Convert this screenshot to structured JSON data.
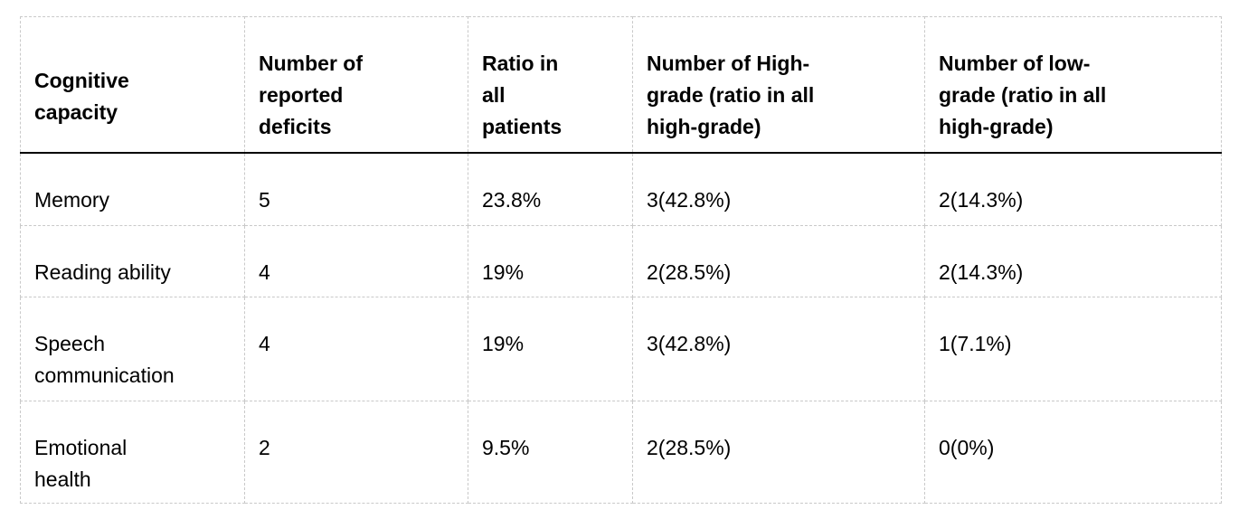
{
  "chart_data": {
    "type": "table",
    "columns": [
      "Cognitive capacity",
      "Number of reported deficits",
      "Ratio in all patients",
      "Number of High-grade (ratio in all high-grade)",
      "Number of low-grade (ratio in all high-grade)"
    ],
    "rows": [
      [
        "Memory",
        "5",
        "23.8%",
        "3(42.8%)",
        "2(14.3%)"
      ],
      [
        "Reading ability",
        "4",
        "19%",
        "2(28.5%)",
        "2(14.3%)"
      ],
      [
        "Speech communication",
        "4",
        "19%",
        "3(42.8%)",
        "1(7.1%)"
      ],
      [
        "Emotional health",
        "2",
        "9.5%",
        "2(28.5%)",
        "0(0%)"
      ]
    ]
  },
  "colors": {
    "background": "#ffffff",
    "text": "#000000",
    "cell_border_dashed": "#c9c9c9",
    "header_bottom_rule": "#000000"
  }
}
